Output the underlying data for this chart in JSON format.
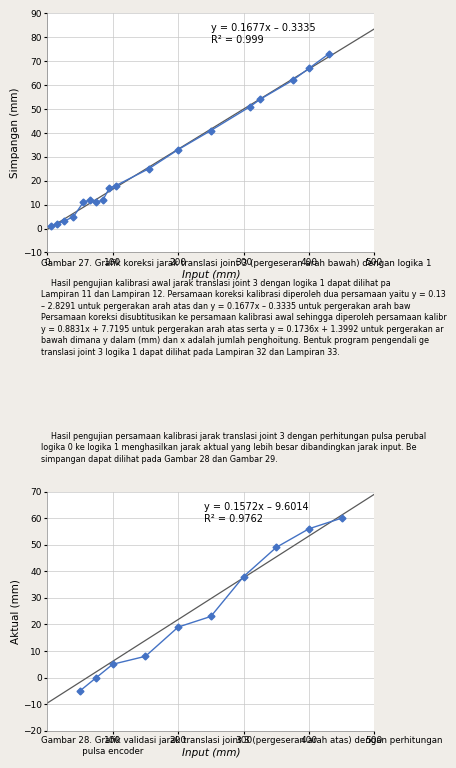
{
  "chart1": {
    "xlabel": "Input (mm)",
    "ylabel": "Simpangan (mm)",
    "xlim": [
      0,
      500
    ],
    "ylim": [
      -10,
      90
    ],
    "xticks": [
      0,
      100,
      200,
      300,
      400,
      500
    ],
    "yticks": [
      -10,
      0,
      10,
      20,
      30,
      40,
      50,
      60,
      70,
      80,
      90
    ],
    "scatter_x": [
      5,
      15,
      25,
      40,
      55,
      65,
      75,
      85,
      95,
      105,
      155,
      200,
      250,
      310,
      325,
      375,
      400,
      430
    ],
    "scatter_y": [
      1,
      2,
      3,
      5,
      11,
      12,
      11,
      12,
      17,
      18,
      25,
      33,
      41,
      51,
      54,
      62,
      67,
      73
    ],
    "line_slope": 0.1677,
    "line_intercept": -0.3335,
    "eq_text": "y = 0.1677x – 0.3335",
    "r2_text": "R² = 0.999",
    "eq_x": 250,
    "eq_y": 86,
    "scatter_color": "#4472C4",
    "line_color": "#595959",
    "marker": "D",
    "marker_size": 3.5
  },
  "chart2": {
    "xlabel": "Input (mm)",
    "ylabel": "Aktual (mm)",
    "xlim": [
      0,
      500
    ],
    "ylim": [
      -20,
      70
    ],
    "xticks": [
      100,
      200,
      300,
      400,
      500
    ],
    "yticks": [
      -20,
      -10,
      0,
      10,
      20,
      30,
      40,
      50,
      60,
      70
    ],
    "scatter_x": [
      50,
      75,
      100,
      150,
      200,
      250,
      300,
      350,
      400,
      450
    ],
    "scatter_y": [
      -5,
      0,
      5,
      8,
      19,
      23,
      38,
      49,
      56,
      60
    ],
    "line_slope": 0.1572,
    "line_intercept": -9.6014,
    "eq_text": "y = 0.1572x – 9.6014",
    "r2_text": "R² = 0.9762",
    "eq_x": 240,
    "eq_y": 66,
    "scatter_color": "#4472C4",
    "line_color": "#595959",
    "marker": "D",
    "marker_size": 3.5
  },
  "figure_bg": "#f0ede8",
  "chart_bg": "#ffffff",
  "grid_color": "#c8c8c8",
  "text_color": "#000000",
  "caption1": "Gambar 27. Grafik koreksi jarak translasi joint 3 (pergeseran arah bawah) dengan logika 1",
  "caption2_line1": "Gambar 28. Grafik validasi jarak translasi joint 3 (pergeseran arah atas) dengan perhitungan",
  "caption2_line2": "               pulsa encoder",
  "para1": "    Hasil pengujian kalibrasi awal jarak translasi joint 3 dengan logika 1 dapat dilihat pa\nLampiran 11 dan Lampiran 12. Persamaan koreksi kalibrasi diperoleh dua persamaan yaitu y = 0.13\n– 2.8291 untuk pergerakan arah atas dan y = 0.1677x – 0.3335 untuk pergerakan arah baw\nPersamaan koreksi disubtitusikan ke persamaan kalibrasi awal sehingga diperoleh persamaan kalibr\ny = 0.8831x + 7.7195 untuk pergerakan arah atas serta y = 0.1736x + 1.3992 untuk pergerakan ar\nbawah dimana y dalam (mm) dan x adalah jumlah penghoitung. Bentuk program pengendali ge\ntranslasi joint 3 logika 1 dapat dilihat pada Lampiran 32 dan Lampiran 33.",
  "para2": "    Hasil pengujian persamaan kalibrasi jarak translasi joint 3 dengan perhitungan pulsa perubal\nlogika 0 ke logika 1 menghasilkan jarak aktual yang lebih besar dibandingkan jarak input. Be\nsimpangan dapat dilihat pada Gambar 28 dan Gambar 29."
}
